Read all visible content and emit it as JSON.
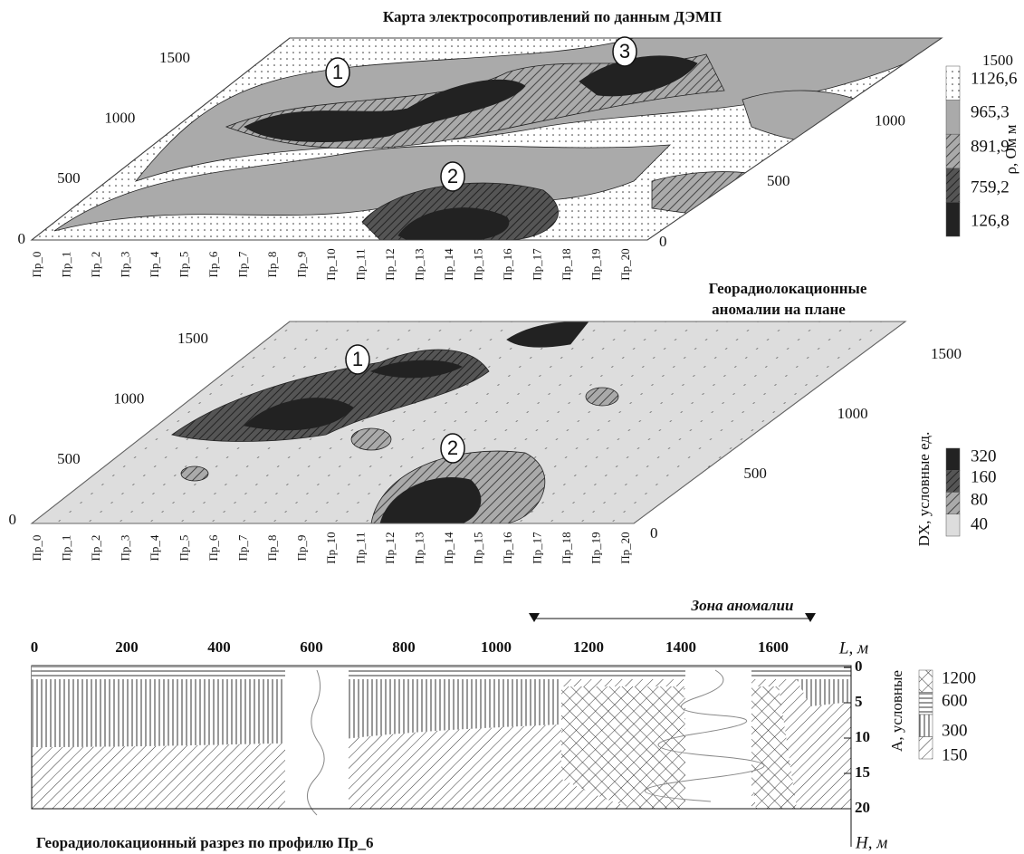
{
  "resistivity_map": {
    "title": "Карта электросопротивлений по данным ДЭМП",
    "left_ticks": [
      0,
      500,
      1000,
      1500
    ],
    "right_ticks": [
      0,
      500,
      1000,
      1500
    ],
    "profiles": [
      "Пр_0",
      "Пр_1",
      "Пр_2",
      "Пр_3",
      "Пр_4",
      "Пр_5",
      "Пр_6",
      "Пр_7",
      "Пр_8",
      "Пр_9",
      "Пр_10",
      "Пр_11",
      "Пр_12",
      "Пр_13",
      "Пр_14",
      "Пр_15",
      "Пр_16",
      "Пр_17",
      "Пр_18",
      "Пр_19",
      "Пр_20"
    ],
    "markers": [
      "1",
      "2",
      "3"
    ],
    "legend": {
      "label": "ρ, Ом м",
      "items": [
        "1126,6",
        "965,3",
        "891,9",
        "759,2",
        "126,8"
      ]
    }
  },
  "gpr_map": {
    "title_lines": [
      "Георадиолокационные",
      "аномалии на плане"
    ],
    "left_ticks": [
      0,
      500,
      1000,
      1500
    ],
    "right_ticks": [
      0,
      500,
      1000,
      1500
    ],
    "profiles": [
      "Пр_0",
      "Пр_1",
      "Пр_2",
      "Пр_3",
      "Пр_4",
      "Пр_5",
      "Пр_6",
      "Пр_7",
      "Пр_8",
      "Пр_9",
      "Пр_10",
      "Пр_11",
      "Пр_12",
      "Пр_13",
      "Пр_14",
      "Пр_15",
      "Пр_16",
      "Пр_17",
      "Пр_18",
      "Пр_19",
      "Пр_20"
    ],
    "markers": [
      "1",
      "2"
    ],
    "legend": {
      "label": "DX, условные ед.",
      "items": [
        "320",
        "160",
        "80",
        "40"
      ]
    }
  },
  "section": {
    "x_ticks": [
      0,
      200,
      400,
      600,
      800,
      1000,
      1200,
      1400,
      1600
    ],
    "x_label": "L, м",
    "zone_label": "Зона аномалии",
    "depth_ticks": [
      0,
      5,
      10,
      15,
      20
    ],
    "depth_label": "H, м",
    "caption": "Георадиолокационный разрез по профилю Пр_6",
    "legend": {
      "label": "А, условные",
      "items": [
        "1200",
        "600",
        "300",
        "150"
      ]
    }
  }
}
